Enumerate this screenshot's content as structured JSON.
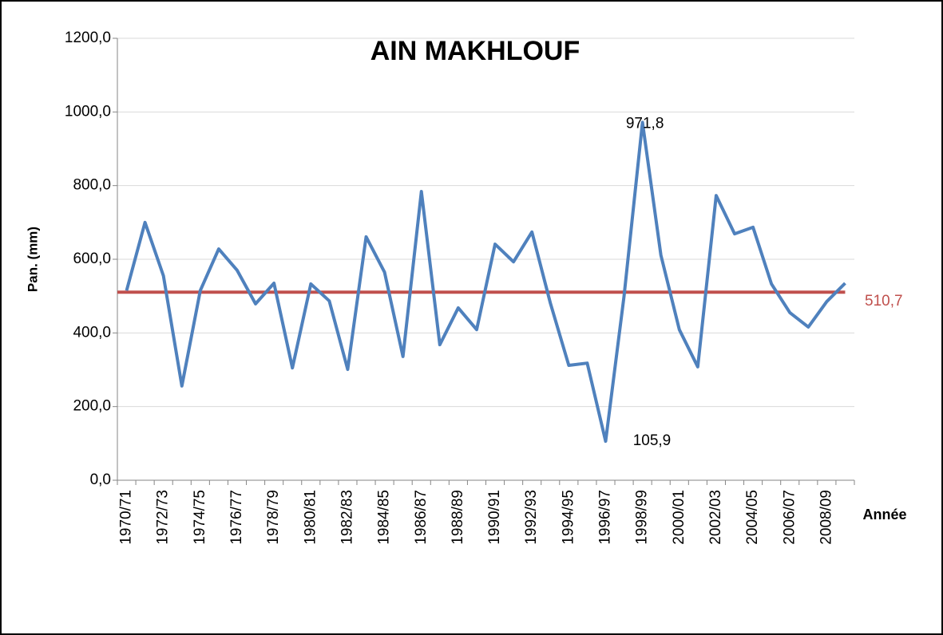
{
  "chart_data": {
    "type": "line",
    "title": "AIN MAKHLOUF",
    "ylabel": "Pan. (mm)",
    "xlabel": "Année",
    "categories": [
      "1970/71",
      null,
      "1972/73",
      null,
      "1974/75",
      null,
      "1976/77",
      null,
      "1978/79",
      null,
      "1980/81",
      null,
      "1982/83",
      null,
      "1984/85",
      null,
      "1986/87",
      null,
      "1988/89",
      null,
      "1990/91",
      null,
      "1992/93",
      null,
      "1994/95",
      null,
      "1996/97",
      null,
      "1998/99",
      null,
      "2000/01",
      null,
      "2002/03",
      null,
      "2004/05",
      null,
      "2006/07",
      null,
      "2008/09",
      null
    ],
    "values": [
      515,
      700,
      555,
      256,
      515,
      628,
      570,
      479,
      535,
      305,
      533,
      487,
      301,
      661,
      565,
      336,
      784,
      368,
      468,
      409,
      641,
      593,
      674,
      481,
      312,
      318,
      105.9,
      500,
      971.8,
      611,
      409,
      308,
      773,
      669,
      687,
      533,
      455,
      416,
      485,
      535
    ],
    "value_labels": [
      null,
      null,
      null,
      null,
      null,
      null,
      null,
      null,
      null,
      null,
      null,
      null,
      null,
      null,
      null,
      null,
      null,
      null,
      null,
      null,
      null,
      null,
      null,
      null,
      null,
      null,
      "105,9",
      null,
      "971,8",
      null,
      null,
      null,
      null,
      null,
      null,
      null,
      null,
      null,
      null,
      null
    ],
    "color": "#4f81bd",
    "mean": {
      "value": 510.7,
      "label": "510,7",
      "color": "#c0504d"
    },
    "ylim": [
      0,
      1200
    ],
    "yticks": [
      {
        "value": 0,
        "label": "0,0"
      },
      {
        "value": 200,
        "label": "200,0"
      },
      {
        "value": 400,
        "label": "400,0"
      },
      {
        "value": 600,
        "label": "600,0"
      },
      {
        "value": 800,
        "label": "800,0"
      },
      {
        "value": 1000,
        "label": "1000,0"
      },
      {
        "value": 1200,
        "label": "1200,0"
      }
    ],
    "grid": true
  }
}
